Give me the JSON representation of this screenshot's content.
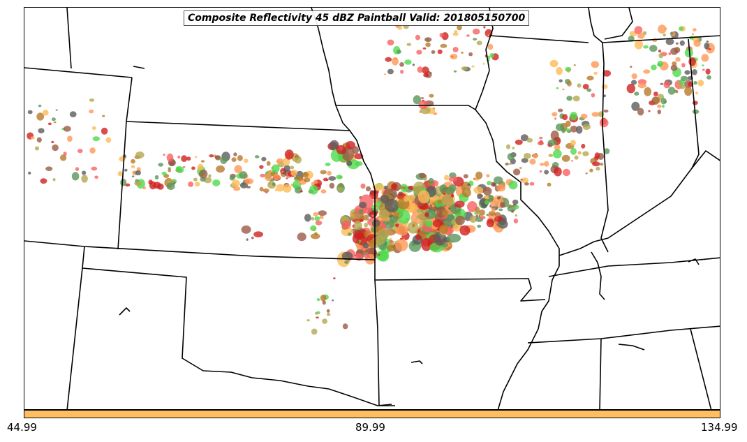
{
  "title": "Composite Reflectivity 45 dBZ Paintball Valid: 201805150700",
  "colorbar": {
    "min_label": "44.99",
    "mid_label": "89.99",
    "max_label": "134.99",
    "color": "#fdbf61"
  },
  "map": {
    "line_color": "#000000",
    "background": "#ffffff"
  },
  "ensemble_member_colors": [
    "#f96260",
    "#fe9856",
    "#fcbb58",
    "#5c5c5c",
    "#4ed94b",
    "#b3a94f",
    "#5a965a",
    "#9b5a45",
    "#d02020",
    "#b87a2a"
  ]
}
